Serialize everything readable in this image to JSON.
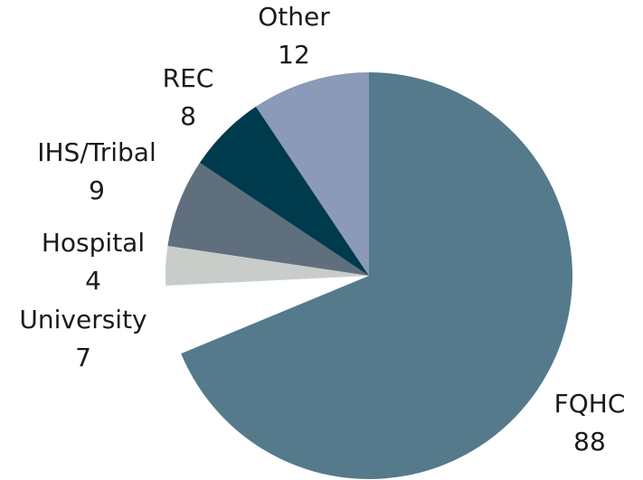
{
  "chart_data": {
    "type": "pie",
    "categories": [
      "FQHC",
      "University",
      "Hospital",
      "IHS/Tribal",
      "REC",
      "Other"
    ],
    "values": [
      88,
      7,
      4,
      9,
      8,
      12
    ],
    "colors": [
      "#557a8c",
      "#ffffff",
      "#c8cdc9",
      "#5f6f7d",
      "#003a4d",
      "#8a9ab8"
    ]
  }
}
